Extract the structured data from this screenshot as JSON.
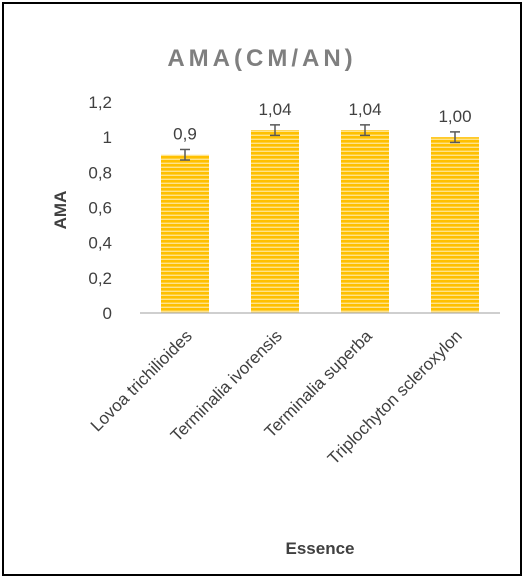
{
  "chart_data": {
    "type": "bar",
    "title": "AMA(CM/AN)",
    "xlabel": "Essence",
    "ylabel": "AMA",
    "categories": [
      "Lovoa trichilioides",
      "Terminalia ivorensis",
      "Terminalia superba",
      "Triplochyton scleroxylon"
    ],
    "values": [
      0.9,
      1.04,
      1.04,
      1.0
    ],
    "data_labels": [
      "0,9",
      "1,04",
      "1,04",
      "1,00"
    ],
    "error": [
      0.03,
      0.03,
      0.03,
      0.03
    ],
    "ylim": [
      0,
      1.2
    ],
    "yticks": [
      0,
      0.2,
      0.4,
      0.6,
      0.8,
      1,
      1.2
    ],
    "ytick_labels": [
      "0",
      "0,2",
      "0,4",
      "0,6",
      "0,8",
      "1",
      "1,2"
    ],
    "grid": false,
    "legend": "none",
    "colors": {
      "bar": "#ffc000",
      "bar_stripe": "#ffe38a",
      "axis": "#bfbfbf",
      "error": "#595959"
    }
  }
}
